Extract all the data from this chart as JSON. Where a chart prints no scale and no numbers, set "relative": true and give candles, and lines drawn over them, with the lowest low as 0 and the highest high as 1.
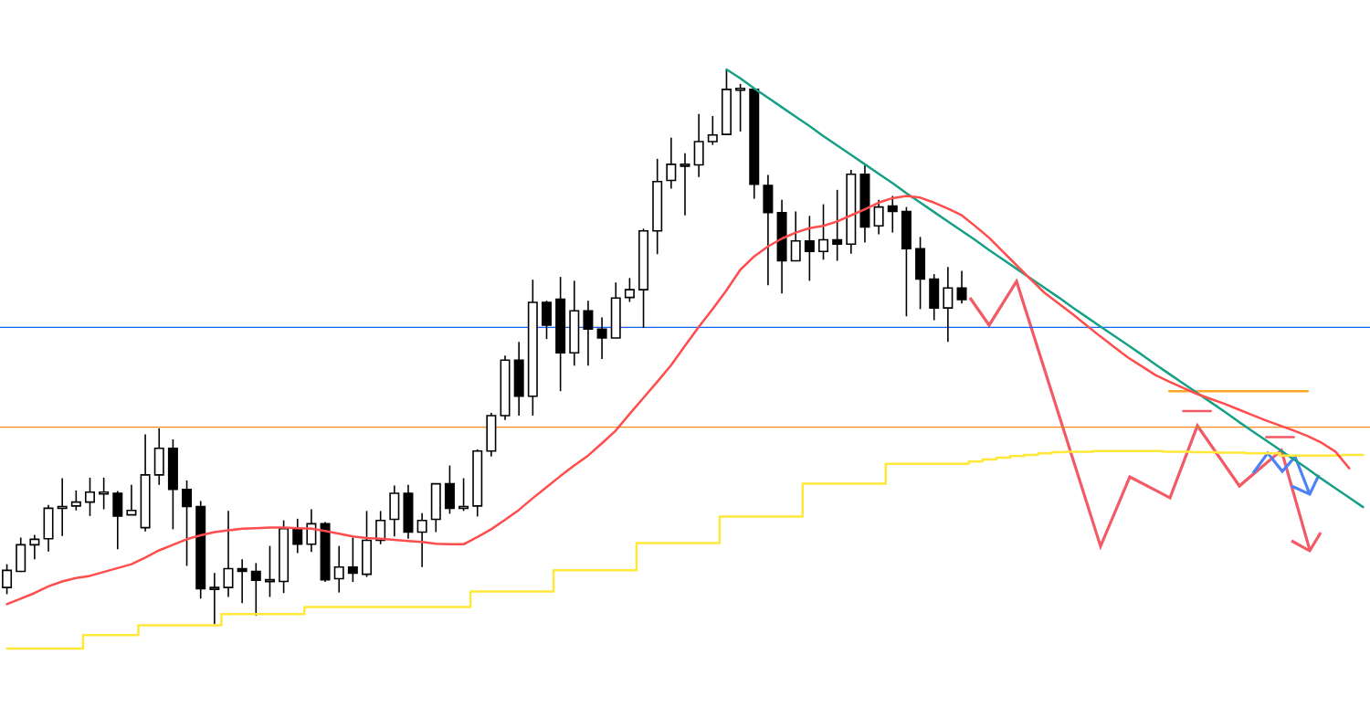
{
  "chart_data": {
    "type": "candlestick",
    "relative": true,
    "categories": [
      null,
      null,
      null,
      null,
      null,
      null,
      null,
      null,
      null,
      null,
      null,
      null,
      null,
      null,
      null,
      null,
      null,
      null,
      null,
      null,
      null,
      null,
      null,
      null,
      null,
      null,
      null,
      null,
      null,
      null,
      null,
      null,
      null,
      null,
      null,
      null,
      null,
      null,
      null,
      null,
      null,
      null,
      null,
      null,
      null,
      null,
      null,
      null,
      null,
      null,
      null,
      null,
      null,
      null,
      null,
      null,
      null,
      null,
      null,
      null,
      null,
      null,
      null,
      null,
      null,
      null,
      null,
      null,
      null,
      null,
      null,
      null,
      null,
      null,
      null,
      null,
      null,
      null,
      null,
      null,
      null,
      null,
      null,
      null,
      null,
      null,
      null,
      null,
      null,
      null,
      null,
      null,
      null,
      null,
      null,
      null,
      null,
      null,
      null
    ],
    "ohlc": [
      [
        0.066,
        0.108,
        0.054,
        0.097
      ],
      [
        0.095,
        0.156,
        0.094,
        0.143
      ],
      [
        0.143,
        0.161,
        0.117,
        0.153
      ],
      [
        0.154,
        0.215,
        0.131,
        0.209
      ],
      [
        0.21,
        0.263,
        0.159,
        0.212
      ],
      [
        0.213,
        0.241,
        0.205,
        0.22
      ],
      [
        0.22,
        0.264,
        0.195,
        0.238
      ],
      [
        0.238,
        0.264,
        0.207,
        0.238
      ],
      [
        0.236,
        0.24,
        0.135,
        0.195
      ],
      [
        0.197,
        0.251,
        0.197,
        0.205
      ],
      [
        0.174,
        0.342,
        0.167,
        0.269
      ],
      [
        0.269,
        0.353,
        0.251,
        0.317
      ],
      [
        0.317,
        0.333,
        0.171,
        0.243
      ],
      [
        0.243,
        0.259,
        0.105,
        0.212
      ],
      [
        0.212,
        0.222,
        0.046,
        0.064
      ],
      [
        0.066,
        0.092,
        0,
        0.066
      ],
      [
        0.066,
        0.204,
        0.049,
        0.1
      ],
      [
        0.1,
        0.117,
        0.038,
        0.095
      ],
      [
        0.095,
        0.11,
        0.015,
        0.079
      ],
      [
        0.079,
        0.141,
        0.049,
        0.08
      ],
      [
        0.077,
        0.187,
        0.056,
        0.172
      ],
      [
        0.171,
        0.19,
        0.128,
        0.144
      ],
      [
        0.144,
        0.207,
        0.13,
        0.181
      ],
      [
        0.181,
        0.184,
        0.076,
        0.08
      ],
      [
        0.082,
        0.141,
        0.057,
        0.103
      ],
      [
        0.103,
        0.156,
        0.076,
        0.092
      ],
      [
        0.09,
        0.204,
        0.085,
        0.151
      ],
      [
        0.151,
        0.204,
        0.144,
        0.187
      ],
      [
        0.189,
        0.25,
        0.158,
        0.236
      ],
      [
        0.236,
        0.251,
        0.154,
        0.166
      ],
      [
        0.166,
        0.2,
        0.103,
        0.187
      ],
      [
        0.189,
        0.253,
        0.166,
        0.253
      ],
      [
        0.253,
        0.286,
        0.199,
        0.209
      ],
      [
        0.209,
        0.263,
        0.204,
        0.212
      ],
      [
        0.213,
        0.315,
        0.194,
        0.312
      ],
      [
        0.312,
        0.381,
        0.302,
        0.376
      ],
      [
        0.376,
        0.484,
        0.368,
        0.476
      ],
      [
        0.476,
        0.509,
        0.376,
        0.411
      ],
      [
        0.411,
        0.621,
        0.376,
        0.58
      ],
      [
        0.58,
        0.583,
        0.514,
        0.539
      ],
      [
        0.586,
        0.626,
        0.42,
        0.489
      ],
      [
        0.489,
        0.619,
        0.466,
        0.565
      ],
      [
        0.565,
        0.583,
        0.466,
        0.532
      ],
      [
        0.532,
        0.553,
        0.478,
        0.516
      ],
      [
        0.516,
        0.616,
        0.516,
        0.588
      ],
      [
        0.589,
        0.624,
        0.581,
        0.603
      ],
      [
        0.603,
        0.713,
        0.534,
        0.709
      ],
      [
        0.709,
        0.839,
        0.667,
        0.798
      ],
      [
        0.8,
        0.877,
        0.785,
        0.829
      ],
      [
        0.829,
        0.849,
        0.737,
        0.829
      ],
      [
        0.828,
        0.92,
        0.806,
        0.87
      ],
      [
        0.87,
        0.916,
        0.864,
        0.882
      ],
      [
        0.883,
        1,
        0.883,
        0.964
      ],
      [
        0.966,
        0.974,
        0.888,
        0.966
      ],
      [
        0.964,
        0.964,
        0.767,
        0.793
      ],
      [
        0.791,
        0.81,
        0.611,
        0.742
      ],
      [
        0.742,
        0.765,
        0.596,
        0.655
      ],
      [
        0.655,
        0.744,
        0.655,
        0.691
      ],
      [
        0.691,
        0.736,
        0.619,
        0.672
      ],
      [
        0.672,
        0.757,
        0.657,
        0.693
      ],
      [
        0.693,
        0.783,
        0.655,
        0.685
      ],
      [
        0.685,
        0.819,
        0.668,
        0.811
      ],
      [
        0.811,
        0.828,
        0.688,
        0.716
      ],
      [
        0.718,
        0.765,
        0.703,
        0.752
      ],
      [
        0.754,
        0.772,
        0.706,
        0.744
      ],
      [
        0.744,
        0.752,
        0.555,
        0.677
      ],
      [
        0.677,
        0.698,
        0.568,
        0.622
      ],
      [
        0.622,
        0.631,
        0.548,
        0.57
      ],
      [
        0.57,
        0.644,
        0.509,
        0.606
      ],
      [
        0.606,
        0.637,
        0.578,
        0.585
      ],
      null,
      null,
      null,
      null,
      null,
      null,
      null,
      null,
      null,
      null,
      null,
      null,
      null,
      null,
      null,
      null,
      null,
      null,
      null,
      null,
      null,
      null,
      null,
      null,
      null,
      null,
      null,
      null,
      null
    ],
    "series": [
      {
        "type": "line",
        "color": "#ff4d4d",
        "values": [
          0.036,
          0.046,
          0.056,
          0.068,
          0.077,
          0.083,
          0.087,
          0.094,
          0.101,
          0.108,
          0.12,
          0.133,
          0.143,
          0.153,
          0.16,
          0.166,
          0.169,
          0.172,
          0.173,
          0.174,
          0.174,
          0.173,
          0.172,
          0.168,
          0.163,
          0.158,
          0.155,
          0.154,
          0.152,
          0.15,
          0.148,
          0.145,
          0.144,
          0.144,
          0.157,
          0.171,
          0.188,
          0.206,
          0.227,
          0.247,
          0.267,
          0.286,
          0.304,
          0.326,
          0.349,
          0.379,
          0.408,
          0.437,
          0.467,
          0.502,
          0.536,
          0.568,
          0.602,
          0.639,
          0.663,
          0.681,
          0.695,
          0.706,
          0.714,
          0.718,
          0.726,
          0.737,
          0.748,
          0.76,
          0.768,
          0.772,
          0.769,
          0.76,
          0.749,
          0.737,
          0.717,
          0.696,
          0.671,
          0.646,
          0.621,
          0.597,
          0.578,
          0.559,
          0.539,
          0.519,
          0.5,
          0.481,
          0.465,
          0.449,
          0.437,
          0.426,
          0.415,
          0.406,
          0.397,
          0.387,
          0.377,
          0.367,
          0.358,
          0.349,
          0.339,
          0.327,
          0.311,
          0.281,
          null
        ]
      },
      {
        "type": "step",
        "color": "#ffe83a",
        "values": [
          -0.044,
          -0.044,
          -0.044,
          -0.044,
          -0.044,
          -0.044,
          -0.02,
          -0.02,
          -0.02,
          -0.02,
          -0.002,
          -0.002,
          -0.002,
          -0.002,
          -0.002,
          -0.002,
          0.018,
          0.018,
          0.018,
          0.018,
          0.018,
          0.018,
          0.031,
          0.031,
          0.031,
          0.031,
          0.031,
          0.031,
          0.031,
          0.031,
          0.031,
          0.031,
          0.031,
          0.031,
          0.059,
          0.059,
          0.059,
          0.059,
          0.059,
          0.059,
          0.097,
          0.097,
          0.097,
          0.097,
          0.097,
          0.097,
          0.146,
          0.146,
          0.146,
          0.146,
          0.146,
          0.146,
          0.194,
          0.194,
          0.194,
          0.194,
          0.194,
          0.194,
          0.253,
          0.253,
          0.253,
          0.253,
          0.253,
          0.253,
          0.289,
          0.289,
          0.289,
          0.289,
          0.289,
          0.289,
          0.293,
          0.297,
          0.3,
          0.303,
          0.305,
          0.308,
          0.31,
          0.311,
          0.311,
          0.312,
          0.312,
          0.312,
          0.312,
          0.312,
          0.311,
          0.311,
          0.31,
          0.31,
          0.309,
          0.309,
          0.308,
          null,
          null,
          null,
          0.304,
          0.304,
          0.304,
          0.305,
          0.305
        ]
      },
      {
        "type": "line",
        "color": "#17a085",
        "values": [
          null,
          null,
          null,
          null,
          null,
          null,
          null,
          null,
          null,
          null,
          null,
          null,
          null,
          null,
          null,
          null,
          null,
          null,
          null,
          null,
          null,
          null,
          null,
          null,
          null,
          null,
          null,
          null,
          null,
          null,
          null,
          null,
          null,
          null,
          null,
          null,
          null,
          null,
          null,
          null,
          null,
          null,
          null,
          null,
          null,
          null,
          null,
          null,
          null,
          null,
          null,
          null,
          1,
          0.984,
          0.966,
          0.949,
          0.932,
          0.915,
          0.898,
          0.88,
          0.863,
          0.846,
          0.829,
          0.812,
          0.795,
          0.777,
          0.76,
          0.743,
          0.726,
          0.709,
          0.692,
          0.674,
          0.657,
          0.64,
          0.623,
          0.606,
          0.589,
          0.571,
          0.554,
          0.537,
          0.52,
          0.503,
          0.486,
          0.468,
          0.451,
          0.434,
          0.417,
          0.4,
          0.383,
          0.365,
          0.348,
          0.331,
          null,
          null,
          0.28,
          0.262,
          0.245,
          0.228,
          0.211
        ]
      },
      {
        "type": "line",
        "color": "#ffa52a",
        "values": [
          null,
          null,
          null,
          null,
          null,
          null,
          null,
          null,
          null,
          null,
          null,
          null,
          null,
          null,
          null,
          null,
          null,
          null,
          null,
          null,
          null,
          null,
          null,
          null,
          null,
          null,
          null,
          null,
          null,
          null,
          null,
          null,
          null,
          null,
          null,
          null,
          null,
          null,
          null,
          null,
          null,
          null,
          null,
          null,
          null,
          null,
          null,
          null,
          null,
          null,
          null,
          null,
          null,
          null,
          null,
          null,
          null,
          null,
          null,
          null,
          null,
          null,
          null,
          null,
          null,
          null,
          null,
          null,
          null,
          null,
          null,
          null,
          null,
          null,
          null,
          null,
          null,
          null,
          null,
          null,
          null,
          null,
          null,
          null,
          0.42,
          0.42,
          0.42,
          0.42,
          0.42,
          0.42,
          0.42,
          0.42,
          0.42,
          0.42,
          0.42,
          null,
          null,
          null,
          null
        ]
      },
      {
        "type": "line",
        "color": "#f25a66",
        "values": [
          null,
          null,
          null,
          null,
          null,
          null,
          null,
          null,
          null,
          null,
          null,
          null,
          null,
          null,
          null,
          null,
          null,
          null,
          null,
          null,
          null,
          null,
          null,
          null,
          null,
          null,
          null,
          null,
          null,
          null,
          null,
          null,
          null,
          null,
          null,
          null,
          null,
          null,
          null,
          null,
          null,
          null,
          null,
          null,
          null,
          null,
          null,
          null,
          null,
          null,
          null,
          null,
          null,
          null,
          null,
          null,
          null,
          null,
          null,
          null,
          null,
          null,
          null,
          null,
          null,
          null,
          null,
          null,
          null,
          null,
          null,
          null,
          null,
          null,
          null,
          null,
          null,
          null,
          null,
          null,
          null,
          null,
          null,
          null,
          null,
          0.384,
          0.384,
          0.384,
          null,
          null,
          null,
          null,
          null,
          null,
          null,
          null,
          null,
          null,
          null
        ]
      },
      {
        "type": "line",
        "color": "#f25a66",
        "values": [
          null,
          null,
          null,
          null,
          null,
          null,
          null,
          null,
          null,
          null,
          null,
          null,
          null,
          null,
          null,
          null,
          null,
          null,
          null,
          null,
          null,
          null,
          null,
          null,
          null,
          null,
          null,
          null,
          null,
          null,
          null,
          null,
          null,
          null,
          null,
          null,
          null,
          null,
          null,
          null,
          null,
          null,
          null,
          null,
          null,
          null,
          null,
          null,
          null,
          null,
          null,
          null,
          null,
          null,
          null,
          null,
          null,
          null,
          null,
          null,
          null,
          null,
          null,
          null,
          null,
          null,
          null,
          null,
          null,
          null,
          null,
          null,
          null,
          null,
          null,
          null,
          null,
          null,
          null,
          null,
          null,
          null,
          null,
          null,
          null,
          null,
          null,
          null,
          null,
          null,
          null,
          0.337,
          0.337,
          0.337,
          null,
          null,
          null,
          null,
          null
        ]
      }
    ],
    "ref_lines": [
      {
        "axis": "y",
        "value": 0.535,
        "color": "#1560ff"
      },
      {
        "axis": "y",
        "value": 0.355,
        "color": "#ff8a1f"
      }
    ]
  }
}
